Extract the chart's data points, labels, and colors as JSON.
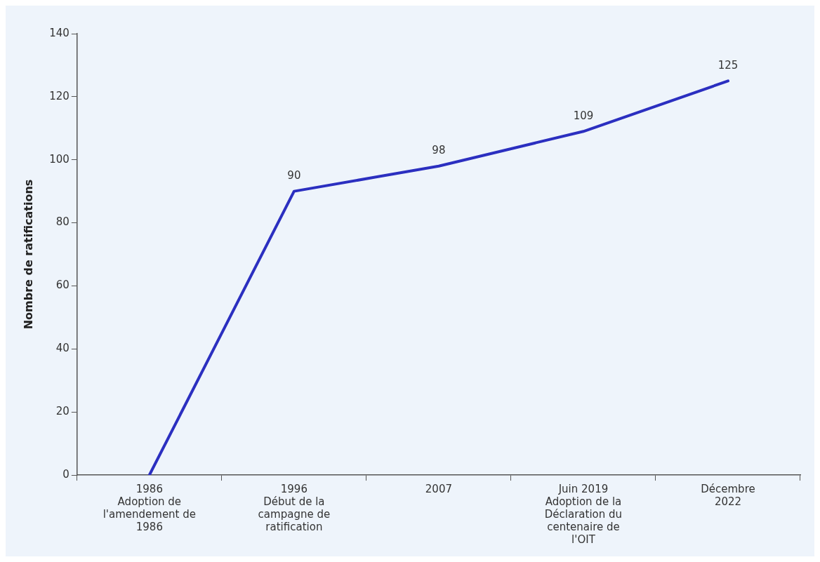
{
  "chart_data": {
    "type": "line",
    "ylabel": "Nombre de ratifications",
    "categories": [
      "1986\nAdoption de\nl'amendement de\n1986",
      "1996\nDébut de la\ncampagne de\nratification",
      "2007",
      "Juin 2019\nAdoption de la\nDéclaration du\ncentenaire de\nl'OIT",
      "Décembre\n2022"
    ],
    "series": [
      {
        "color": "#2b2fc0",
        "values": [
          0,
          90,
          98,
          109,
          125
        ],
        "value_labels": [
          null,
          "90",
          "98",
          "109",
          "125"
        ]
      }
    ],
    "ylim": [
      0,
      140
    ],
    "yticks": [
      0,
      20,
      40,
      60,
      80,
      100,
      120,
      140
    ],
    "grid": false,
    "legend": false,
    "marker": "none",
    "line_style": "solid"
  }
}
